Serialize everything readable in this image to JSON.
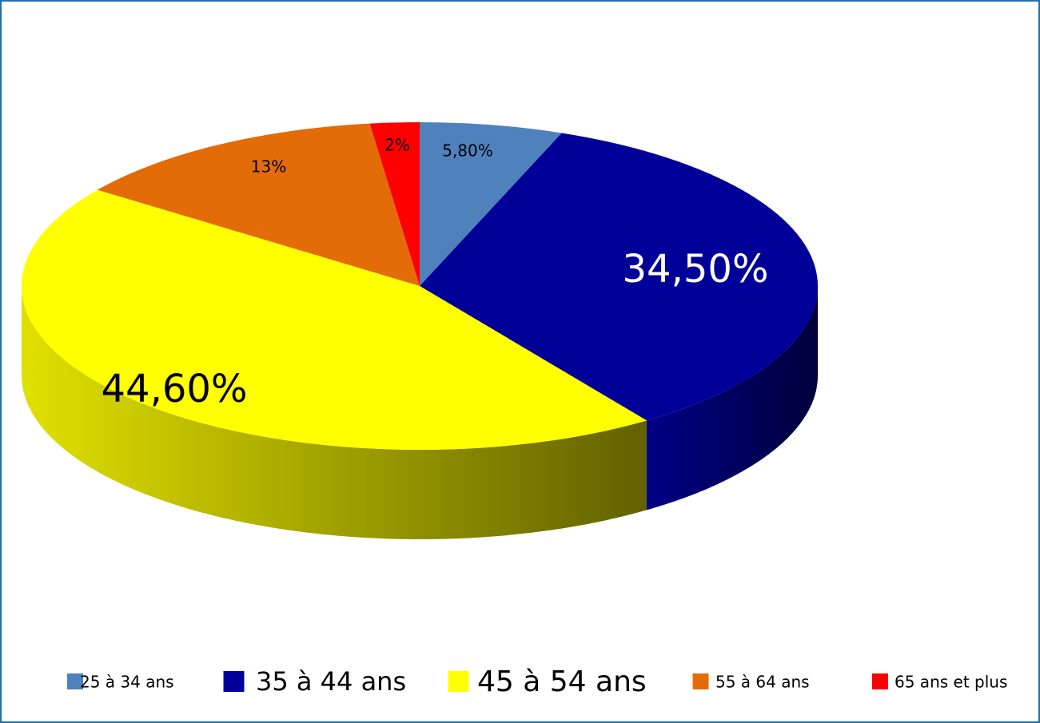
{
  "chart_data": {
    "type": "pie",
    "categories": [
      "25 à 34 ans",
      "35 à 44 ans",
      "45 à 54 ans",
      "55 à 64 ans",
      "65 ans et plus"
    ],
    "values": [
      5.8,
      34.5,
      44.6,
      13,
      2
    ],
    "value_labels": [
      "5,80%",
      "34,50%",
      "44,60%",
      "13%",
      "2%"
    ],
    "colors": [
      "#4f81bd",
      "#000099",
      "#ffff00",
      "#e36c09",
      "#ff0000"
    ],
    "legend": "bottom"
  }
}
